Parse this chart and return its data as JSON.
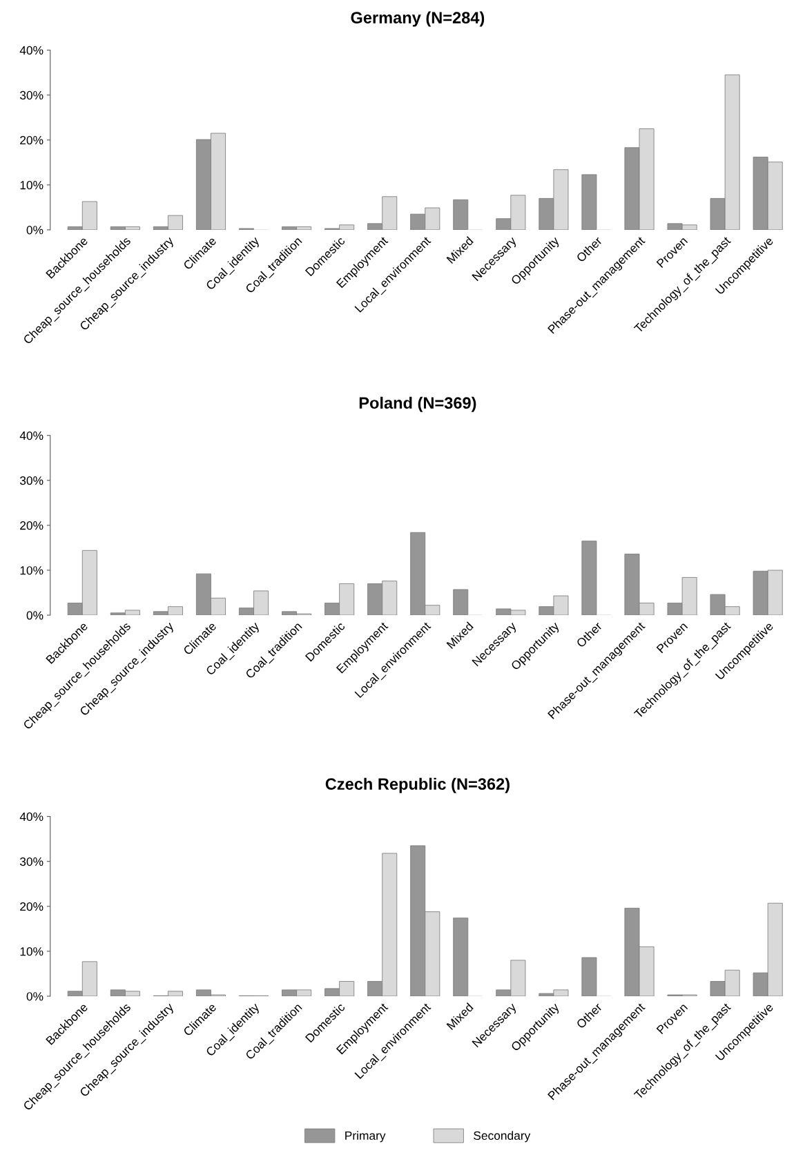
{
  "chart_data": [
    {
      "type": "bar",
      "title": "Germany (N=284)",
      "categories": [
        "Backbone",
        "Cheap_source_households",
        "Cheap_source_industry",
        "Climate",
        "Coal_identity",
        "Coal_tradition",
        "Domestic",
        "Employment",
        "Local_environment",
        "Mixed",
        "Necessary",
        "Opportunity",
        "Other",
        "Phase-out_management",
        "Proven",
        "Technology_of_the_past",
        "Uncompetitive"
      ],
      "series": [
        {
          "color": "#969696",
          "values": [
            0.7,
            0.7,
            0.7,
            20.1,
            0.3,
            0.7,
            0.3,
            1.4,
            3.5,
            6.7,
            2.5,
            7.0,
            12.3,
            18.3,
            1.4,
            7.0,
            16.2
          ]
        },
        {
          "color": "#d9d9d9",
          "values": [
            6.3,
            0.7,
            3.2,
            21.5,
            0,
            0.7,
            1.1,
            7.4,
            4.9,
            0,
            7.7,
            13.4,
            0,
            22.5,
            1.1,
            34.5,
            15.1
          ]
        }
      ],
      "ylim": [
        0,
        40
      ],
      "yticks": [
        {
          "value": 0,
          "label": "0%"
        },
        {
          "value": 10,
          "label": "10%"
        },
        {
          "value": 20,
          "label": "20%"
        },
        {
          "value": 30,
          "label": "30%"
        },
        {
          "value": 40,
          "label": "40%"
        }
      ],
      "grid": false,
      "legend": false
    },
    {
      "type": "bar",
      "title": "Poland (N=369)",
      "categories": [
        "Backbone",
        "Cheap_source_households",
        "Cheap_source_industry",
        "Climate",
        "Coal_identity",
        "Coal_tradition",
        "Domestic",
        "Employment",
        "Local_environment",
        "Mixed",
        "Necessary",
        "Opportunity",
        "Other",
        "Phase-out_management",
        "Proven",
        "Technology_of_the_past",
        "Uncompetitive"
      ],
      "series": [
        {
          "color": "#969696",
          "values": [
            2.7,
            0.5,
            0.8,
            9.2,
            1.6,
            0.8,
            2.7,
            7.0,
            18.4,
            5.7,
            1.4,
            1.9,
            16.5,
            13.6,
            2.7,
            4.6,
            9.8
          ]
        },
        {
          "color": "#d9d9d9",
          "values": [
            14.4,
            1.1,
            1.9,
            3.8,
            5.4,
            0.3,
            7.0,
            7.6,
            2.2,
            0,
            1.1,
            4.3,
            0,
            2.7,
            8.4,
            1.9,
            10.0
          ]
        }
      ],
      "ylim": [
        0,
        40
      ],
      "yticks": [
        {
          "value": 0,
          "label": "0%"
        },
        {
          "value": 10,
          "label": "10%"
        },
        {
          "value": 20,
          "label": "20%"
        },
        {
          "value": 30,
          "label": "30%"
        },
        {
          "value": 40,
          "label": "40%"
        }
      ],
      "grid": false,
      "legend": false
    },
    {
      "type": "bar",
      "title": "Czech Republic (N=362)",
      "categories": [
        "Backbone",
        "Cheap_source_households",
        "Cheap_source_industry",
        "Climate",
        "Coal_identity",
        "Coal_tradition",
        "Domestic",
        "Employment",
        "Local_environment",
        "Mixed",
        "Necessary",
        "Opportunity",
        "Other",
        "Phase-out_management",
        "Proven",
        "Technology_of_the_past",
        "Uncompetitive"
      ],
      "series": [
        {
          "name": "Primary",
          "color": "#969696",
          "values": [
            1.1,
            1.4,
            0.1,
            1.4,
            0.1,
            1.4,
            1.7,
            3.3,
            33.5,
            17.4,
            1.4,
            0.6,
            8.6,
            19.6,
            0.3,
            3.3,
            5.2
          ]
        },
        {
          "name": "Secondary",
          "color": "#d9d9d9",
          "values": [
            7.7,
            1.1,
            1.1,
            0.3,
            0.1,
            1.4,
            3.3,
            31.8,
            18.8,
            0,
            8.0,
            1.4,
            0,
            11.0,
            0.3,
            5.8,
            20.7
          ]
        }
      ],
      "ylim": [
        0,
        40
      ],
      "yticks": [
        {
          "value": 0,
          "label": "0%"
        },
        {
          "value": 10,
          "label": "10%"
        },
        {
          "value": 20,
          "label": "20%"
        },
        {
          "value": 30,
          "label": "30%"
        },
        {
          "value": 40,
          "label": "40%"
        }
      ],
      "grid": false,
      "legend": "bottom"
    }
  ]
}
